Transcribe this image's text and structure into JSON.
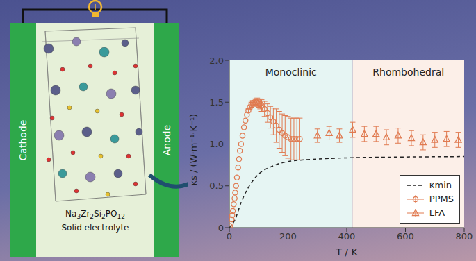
{
  "diagram": {
    "cathode": "Cathode",
    "anode": "Anode",
    "electrolyte_formula": "Na3Zr2Si2PO12",
    "electrolyte_label": "Solid electrolyte"
  },
  "chart_data": {
    "type": "scatter",
    "xlabel": "T / K",
    "ylabel": "κs / (W·m⁻¹·K⁻¹)",
    "xlim": [
      0,
      800
    ],
    "xticks": [
      0,
      200,
      400,
      600,
      800
    ],
    "ylim": [
      0,
      2
    ],
    "yticks": [
      0,
      {
        "value": 0.5,
        "label": "0.5"
      },
      {
        "value": 1,
        "label": "1.0"
      },
      {
        "value": 1.5,
        "label": "1.5"
      },
      {
        "value": 2,
        "label": "2.0"
      }
    ],
    "legend": "lower right",
    "regions": [
      {
        "label": "Monoclinic",
        "x": [
          0,
          420
        ],
        "color": "#e6f5f3"
      },
      {
        "label": "Rhombohedral",
        "x": [
          420,
          800
        ],
        "color": "#fcefe8"
      }
    ],
    "series": [
      {
        "name": "κmin",
        "type": "line",
        "line_style": "dashed",
        "color": "#222222",
        "x": [
          0,
          20,
          40,
          60,
          80,
          100,
          150,
          200,
          300,
          400,
          600,
          800
        ],
        "values": [
          0,
          0.1,
          0.3,
          0.45,
          0.56,
          0.64,
          0.74,
          0.79,
          0.82,
          0.835,
          0.845,
          0.85
        ]
      },
      {
        "name": "PPMS",
        "type": "scatter",
        "marker": "circle",
        "color": "#e07a50",
        "x": [
          2,
          5,
          8,
          10,
          12,
          15,
          18,
          20,
          23,
          26,
          30,
          33,
          36,
          40,
          45,
          50,
          55,
          60,
          65,
          70,
          75,
          80,
          85,
          90,
          95,
          100,
          105,
          110,
          120,
          130,
          140,
          150,
          160,
          170,
          180,
          190,
          200,
          210,
          220,
          230,
          240
        ],
        "values": [
          0.02,
          0.05,
          0.1,
          0.15,
          0.2,
          0.28,
          0.35,
          0.42,
          0.5,
          0.6,
          0.72,
          0.82,
          0.92,
          1.0,
          1.1,
          1.2,
          1.28,
          1.35,
          1.4,
          1.44,
          1.47,
          1.49,
          1.5,
          1.5,
          1.5,
          1.49,
          1.48,
          1.46,
          1.42,
          1.37,
          1.32,
          1.27,
          1.22,
          1.17,
          1.13,
          1.1,
          1.08,
          1.06,
          1.06,
          1.06,
          1.06
        ],
        "errors": [
          0,
          0,
          0,
          0,
          0,
          0,
          0,
          0,
          0,
          0,
          0,
          0,
          0,
          0,
          0,
          0,
          0,
          0,
          0.02,
          0.02,
          0.03,
          0.03,
          0.04,
          0.04,
          0.05,
          0.05,
          0.06,
          0.07,
          0.09,
          0.11,
          0.13,
          0.16,
          0.2,
          0.22,
          0.23,
          0.24,
          0.25,
          0.25,
          0.25,
          0.25,
          0.25
        ]
      },
      {
        "name": "LFA",
        "type": "scatter",
        "marker": "triangle",
        "color": "#e07a50",
        "x": [
          300,
          340,
          375,
          420,
          460,
          500,
          535,
          575,
          620,
          660,
          700,
          740,
          780
        ],
        "values": [
          1.1,
          1.13,
          1.1,
          1.17,
          1.12,
          1.12,
          1.08,
          1.1,
          1.07,
          1.02,
          1.05,
          1.06,
          1.05
        ],
        "errors": [
          0.08,
          0.08,
          0.08,
          0.09,
          0.09,
          0.09,
          0.09,
          0.09,
          0.09,
          0.09,
          0.09,
          0.09,
          0.09
        ]
      }
    ]
  }
}
